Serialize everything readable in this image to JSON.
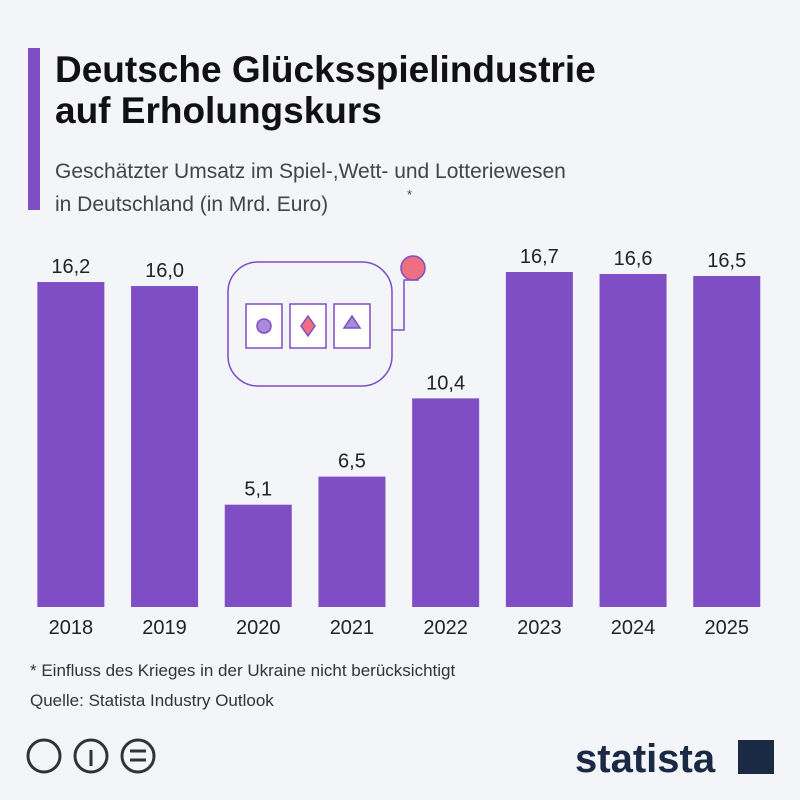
{
  "chart_data": {
    "type": "bar",
    "title": [
      "Deutsche Glücksspielindustrie",
      "auf Erholungskurs"
    ],
    "subtitle": [
      "Geschätzter Umsatz im Spiel-,Wett- und Lotteriewesen",
      "in Deutschland (in Mrd. Euro)"
    ],
    "subtitle_marker": "*",
    "categories": [
      "2018",
      "2019",
      "2020",
      "2021",
      "2022",
      "2023",
      "2024",
      "2025"
    ],
    "values": [
      16.2,
      16.0,
      5.1,
      6.5,
      10.4,
      16.7,
      16.6,
      16.5
    ],
    "value_labels": [
      "16,2",
      "16,0",
      "5,1",
      "6,5",
      "10,4",
      "16,7",
      "16,6",
      "16,5"
    ],
    "color": "#7f4dc4",
    "footnote": "* Einfluss des Krieges in der Ukraine nicht berücksichtigt",
    "source": "Quelle: Statista Industry Outlook",
    "brand": "statista"
  }
}
